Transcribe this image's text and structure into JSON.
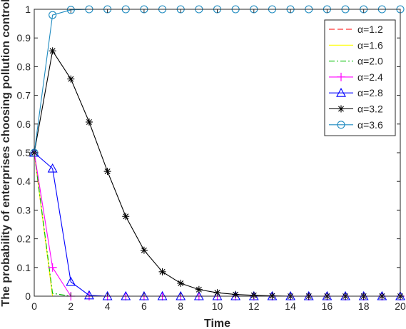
{
  "chart_data": {
    "type": "line",
    "title": "",
    "xlabel": "Time",
    "ylabel": "The probability of enterprises choosing pollution control",
    "xlim": [
      0,
      20
    ],
    "ylim": [
      0,
      1
    ],
    "xticks": [
      "0",
      "2",
      "4",
      "6",
      "8",
      "10",
      "12",
      "14",
      "16",
      "18",
      "20"
    ],
    "yticks": [
      "0",
      "0.1",
      "0.2",
      "0.3",
      "0.4",
      "0.5",
      "0.6",
      "0.7",
      "0.8",
      "0.9",
      "1"
    ],
    "grid": false,
    "legend_position": "top-right",
    "x": [
      0,
      1,
      2,
      3,
      4,
      5,
      6,
      7,
      8,
      9,
      10,
      11,
      12,
      13,
      14,
      15,
      16,
      17,
      18,
      19,
      20
    ],
    "series": [
      {
        "name": "α=1.2",
        "color": "#ff0000",
        "style": "dashed",
        "marker": "none",
        "values": [
          0.5,
          0,
          0,
          0,
          0,
          0,
          0,
          0,
          0,
          0,
          0,
          0,
          0,
          0,
          0,
          0,
          0,
          0,
          0,
          0,
          0
        ]
      },
      {
        "name": "α=1.6",
        "color": "#ffff00",
        "style": "solid",
        "marker": "none",
        "values": [
          0.5,
          0,
          0,
          0,
          0,
          0,
          0,
          0,
          0,
          0,
          0,
          0,
          0,
          0,
          0,
          0,
          0,
          0,
          0,
          0,
          0
        ]
      },
      {
        "name": "α=2.0",
        "color": "#00c000",
        "style": "dashdot",
        "marker": "none",
        "values": [
          0.5,
          0.01,
          0,
          0,
          0,
          0,
          0,
          0,
          0,
          0,
          0,
          0,
          0,
          0,
          0,
          0,
          0,
          0,
          0,
          0,
          0
        ]
      },
      {
        "name": "α=2.4",
        "color": "#ff00ff",
        "style": "solid",
        "marker": "plus",
        "values": [
          0.5,
          0.1,
          0,
          0,
          0,
          0,
          0,
          0,
          0,
          0,
          0,
          0,
          0,
          0,
          0,
          0,
          0,
          0,
          0,
          0,
          0
        ]
      },
      {
        "name": "α=2.8",
        "color": "#0000ff",
        "style": "solid",
        "marker": "triangle",
        "values": [
          0.5,
          0.445,
          0.05,
          0.003,
          0,
          0,
          0,
          0,
          0,
          0,
          0,
          0,
          0,
          0,
          0,
          0,
          0,
          0,
          0,
          0,
          0
        ]
      },
      {
        "name": "α=3.2",
        "color": "#000000",
        "style": "solid",
        "marker": "star",
        "values": [
          0.5,
          0.855,
          0.757,
          0.607,
          0.435,
          0.278,
          0.16,
          0.085,
          0.045,
          0.023,
          0.012,
          0.006,
          0.003,
          0.001,
          0,
          0,
          0,
          0,
          0,
          0,
          0
        ]
      },
      {
        "name": "α=3.6",
        "color": "#1f8bc0",
        "style": "solid",
        "marker": "circle",
        "values": [
          0.5,
          0.98,
          0.998,
          1,
          1,
          1,
          1,
          1,
          1,
          1,
          1,
          1,
          1,
          1,
          1,
          1,
          1,
          1,
          1,
          1,
          1
        ]
      }
    ]
  }
}
